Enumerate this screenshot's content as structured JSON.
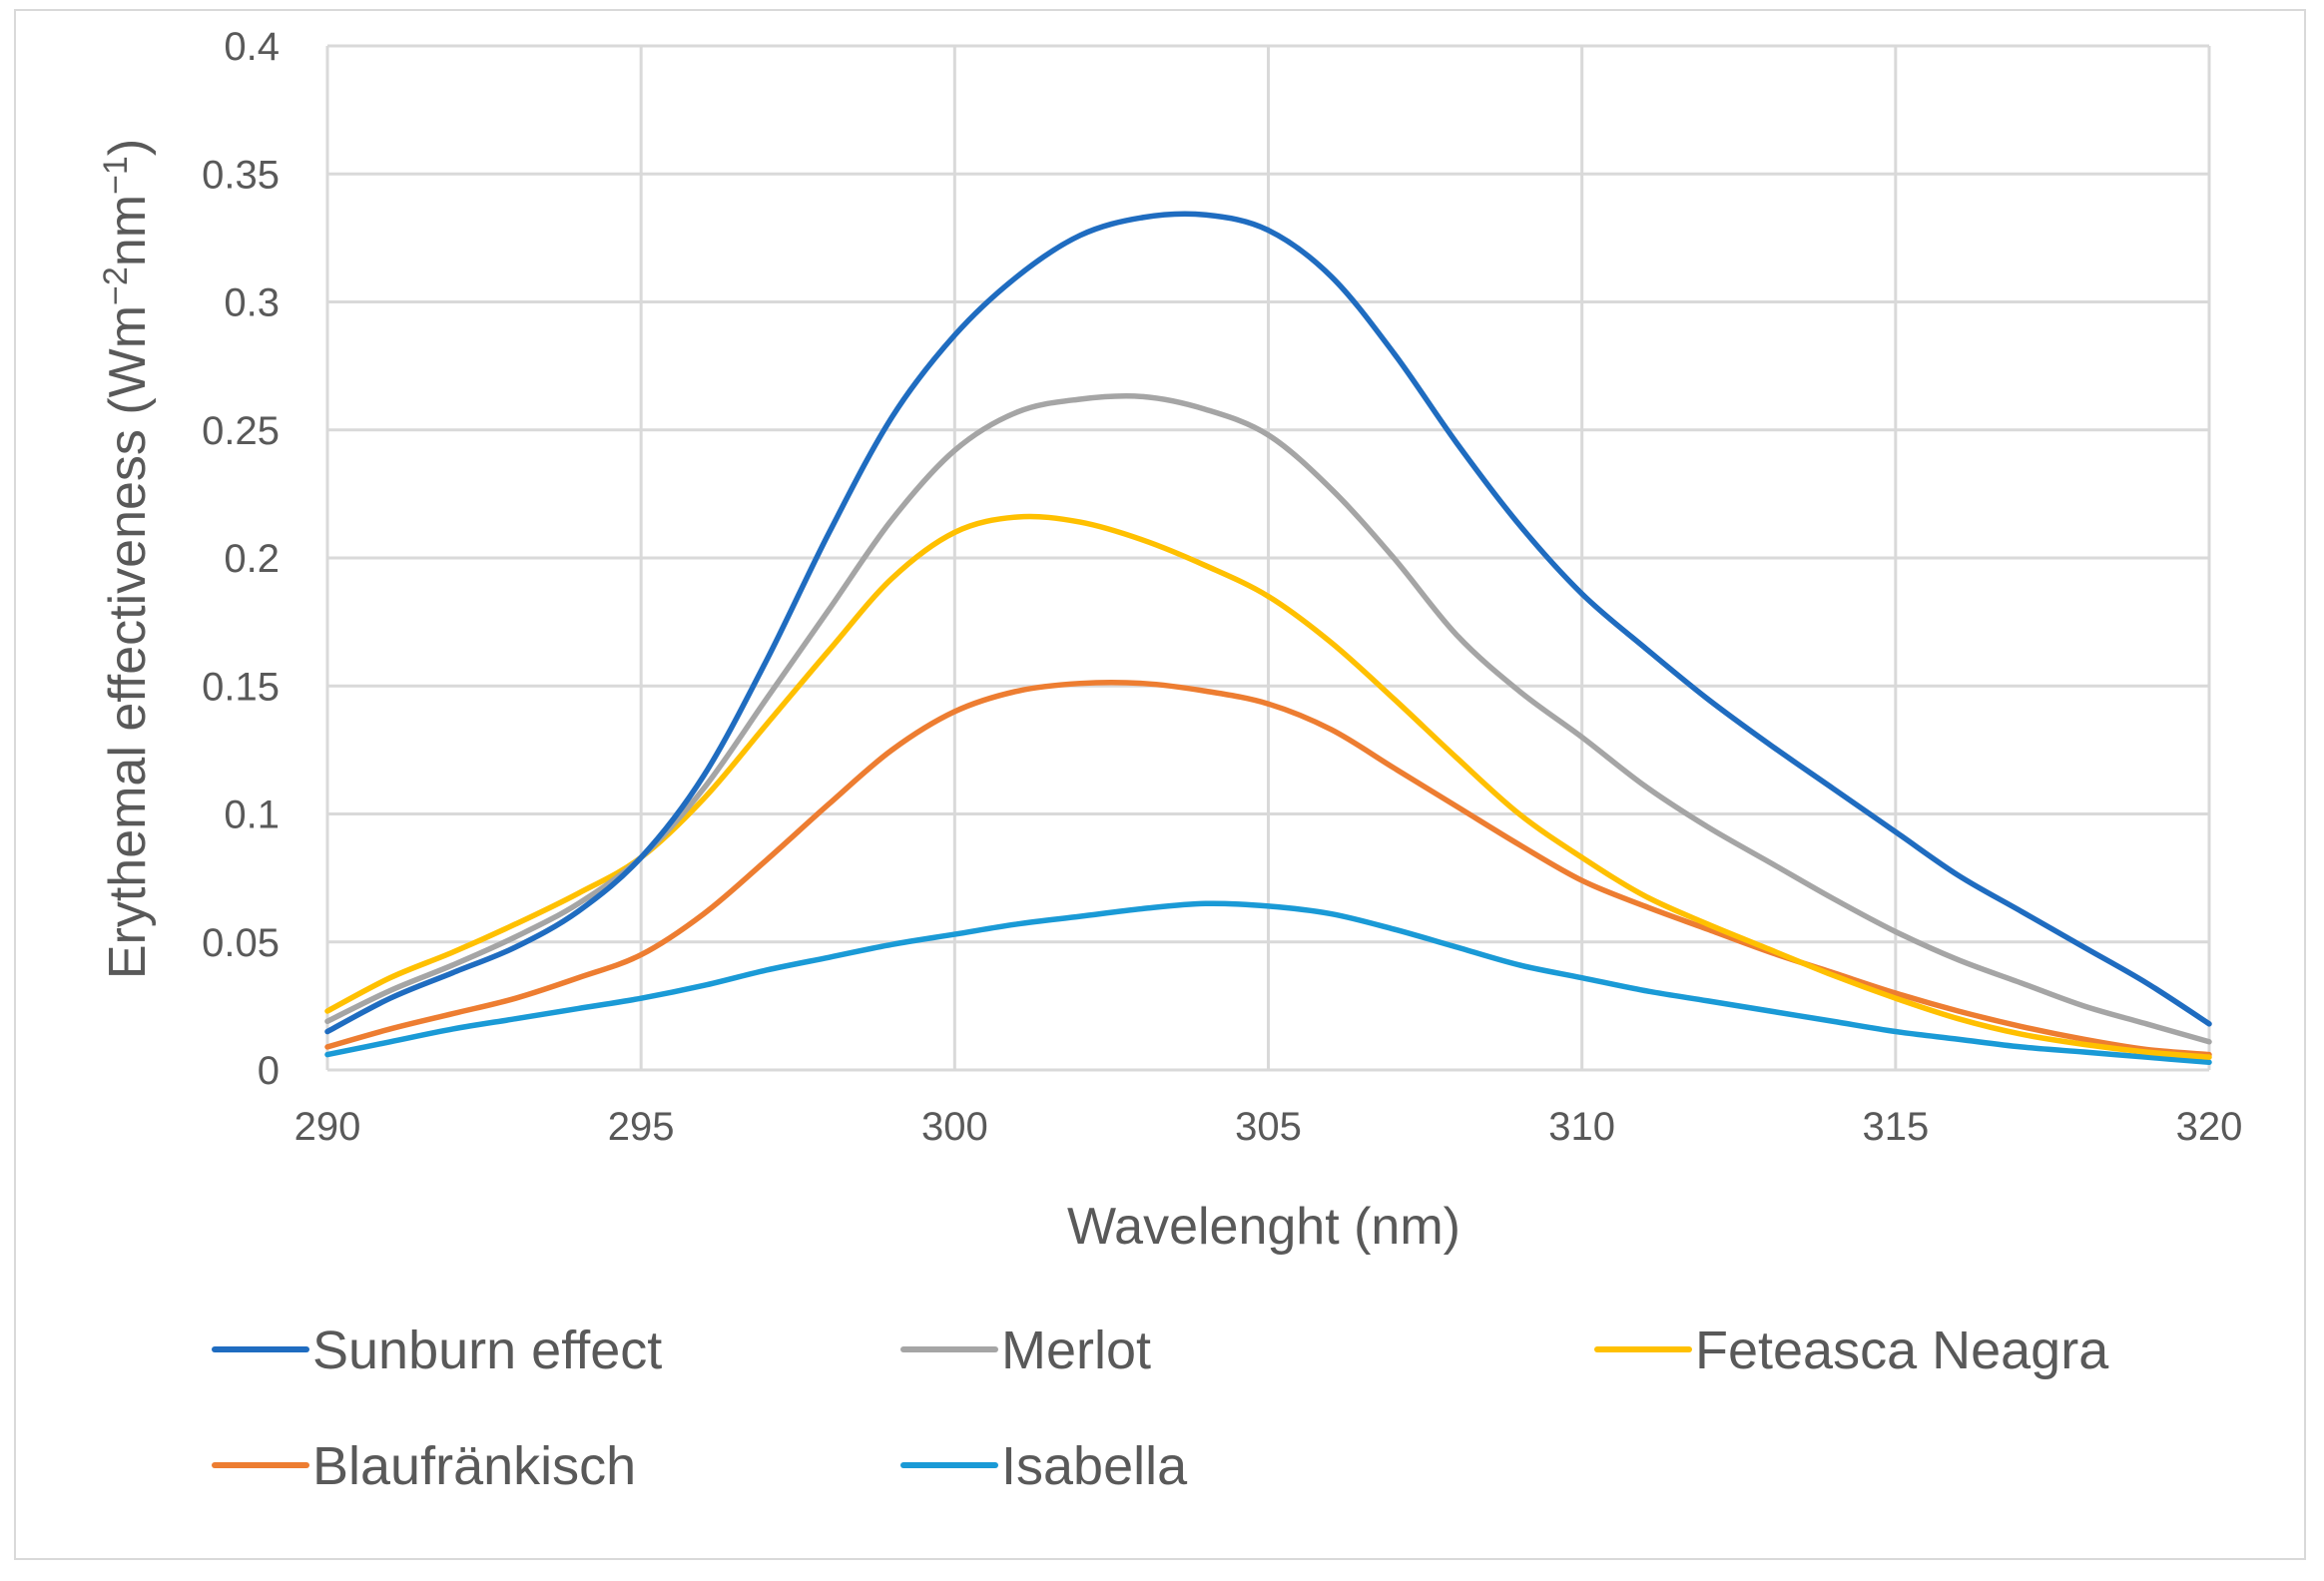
{
  "chart_data": {
    "type": "line",
    "title": "",
    "xlabel": "Wavelenght (nm)",
    "ylabel_main": "Erythemal effectiveness (Wm",
    "ylabel_mid": "nm",
    "ylabel_end": ")",
    "ylabel_sup1": "−2",
    "ylabel_sup2": "−1",
    "xlim": [
      290,
      320
    ],
    "ylim": [
      0,
      0.4
    ],
    "xticks": [
      290,
      295,
      300,
      305,
      310,
      315,
      320
    ],
    "xtick_labels": [
      "290",
      "295",
      "300",
      "305",
      "310",
      "315",
      "320"
    ],
    "yticks": [
      0,
      0.05,
      0.1,
      0.15,
      0.2,
      0.25,
      0.3,
      0.35,
      0.4
    ],
    "ytick_labels": [
      "0",
      "0.05",
      "0.1",
      "0.15",
      "0.2",
      "0.25",
      "0.3",
      "0.35",
      "0.4"
    ],
    "grid": true,
    "legend_position": "bottom",
    "x": [
      290,
      291,
      292,
      293,
      294,
      295,
      296,
      297,
      298,
      299,
      300,
      301,
      302,
      303,
      304,
      305,
      306,
      307,
      308,
      309,
      310,
      311,
      312,
      313,
      314,
      315,
      316,
      317,
      318,
      319,
      320
    ],
    "series": [
      {
        "name": "Sunburn effect",
        "color": "#1f6cc0",
        "values": [
          0.015,
          0.028,
          0.038,
          0.048,
          0.062,
          0.083,
          0.115,
          0.16,
          0.21,
          0.255,
          0.287,
          0.31,
          0.326,
          0.333,
          0.334,
          0.328,
          0.31,
          0.28,
          0.245,
          0.213,
          0.186,
          0.165,
          0.145,
          0.127,
          0.11,
          0.093,
          0.076,
          0.062,
          0.048,
          0.034,
          0.018
        ]
      },
      {
        "name": "Merlot",
        "color": "#a5a5a5",
        "values": [
          0.019,
          0.031,
          0.041,
          0.052,
          0.065,
          0.083,
          0.11,
          0.145,
          0.18,
          0.215,
          0.242,
          0.257,
          0.262,
          0.263,
          0.258,
          0.248,
          0.227,
          0.2,
          0.17,
          0.148,
          0.13,
          0.111,
          0.095,
          0.081,
          0.067,
          0.054,
          0.043,
          0.034,
          0.025,
          0.018,
          0.011
        ]
      },
      {
        "name": "Feteasca Neagra",
        "color": "#ffc000",
        "values": [
          0.023,
          0.036,
          0.046,
          0.057,
          0.069,
          0.083,
          0.106,
          0.135,
          0.164,
          0.192,
          0.21,
          0.216,
          0.214,
          0.207,
          0.197,
          0.185,
          0.167,
          0.145,
          0.122,
          0.1,
          0.083,
          0.068,
          0.057,
          0.047,
          0.037,
          0.028,
          0.02,
          0.014,
          0.01,
          0.007,
          0.005
        ]
      },
      {
        "name": "Blaufränkisch",
        "color": "#ed7d31",
        "values": [
          0.009,
          0.016,
          0.022,
          0.028,
          0.036,
          0.045,
          0.061,
          0.082,
          0.104,
          0.125,
          0.14,
          0.148,
          0.151,
          0.151,
          0.148,
          0.143,
          0.133,
          0.118,
          0.103,
          0.088,
          0.074,
          0.064,
          0.055,
          0.046,
          0.038,
          0.03,
          0.023,
          0.017,
          0.012,
          0.008,
          0.006
        ]
      },
      {
        "name": "Isabella",
        "color": "#1a9ad6",
        "values": [
          0.006,
          0.011,
          0.016,
          0.02,
          0.024,
          0.028,
          0.033,
          0.039,
          0.044,
          0.049,
          0.053,
          0.057,
          0.06,
          0.063,
          0.065,
          0.064,
          0.061,
          0.055,
          0.048,
          0.041,
          0.036,
          0.031,
          0.027,
          0.023,
          0.019,
          0.015,
          0.012,
          0.009,
          0.007,
          0.005,
          0.003
        ]
      }
    ]
  }
}
